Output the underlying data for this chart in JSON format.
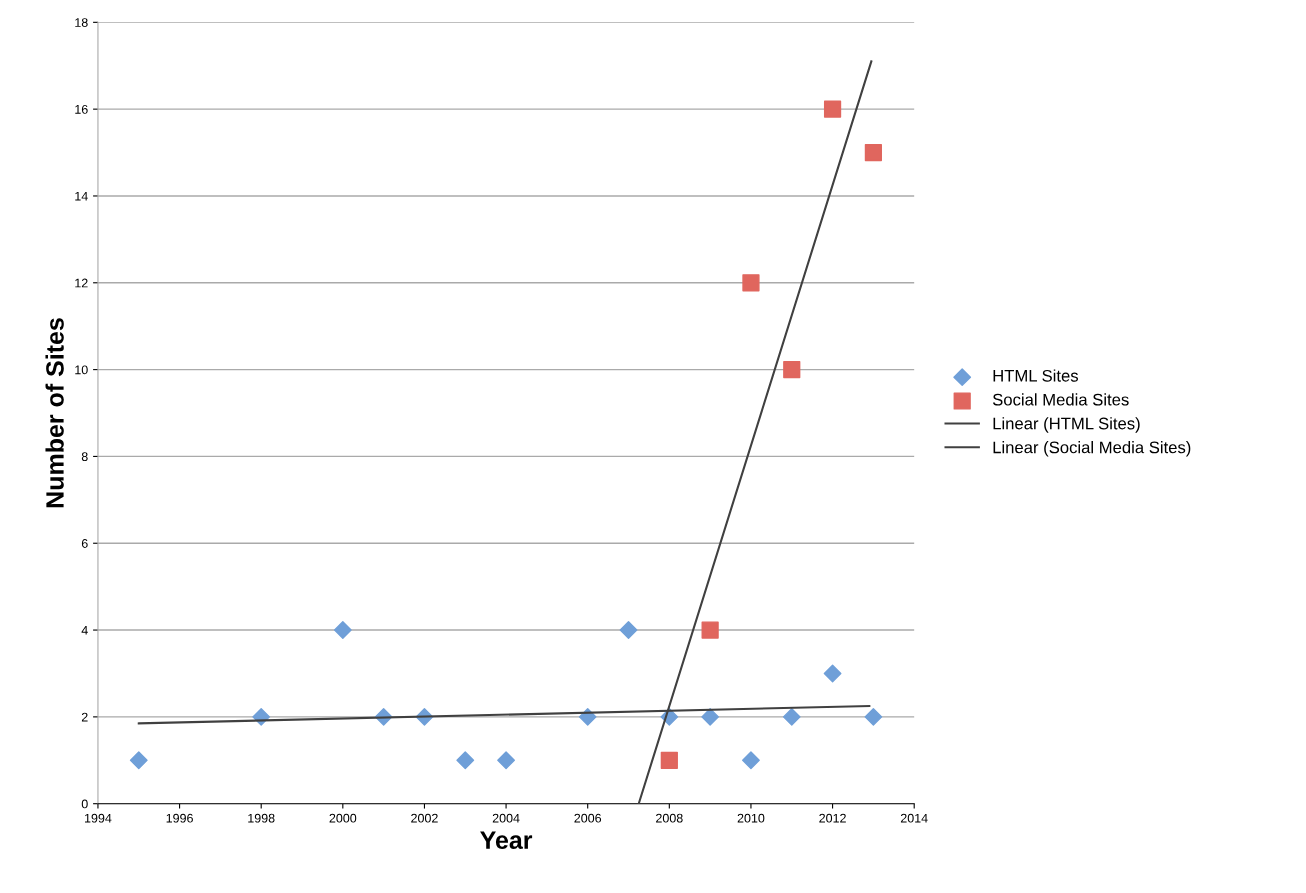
{
  "chart_data": {
    "type": "scatter",
    "xlabel": "Year",
    "ylabel": "Number of Sites",
    "xlim": [
      1994,
      2014
    ],
    "xticks": [
      1994,
      1996,
      1998,
      2000,
      2002,
      2004,
      2006,
      2008,
      2010,
      2012,
      2014
    ],
    "ylim": [
      0,
      18
    ],
    "yticks": [
      0,
      2,
      4,
      6,
      8,
      10,
      12,
      14,
      16,
      18
    ],
    "grid": "y",
    "legend": "right",
    "series": [
      {
        "name": "HTML Sites",
        "marker": "diamond",
        "color": "#6f9fd8",
        "x": [
          1995,
          1998,
          2000,
          2001,
          2002,
          2003,
          2004,
          2006,
          2007,
          2008,
          2009,
          2010,
          2011,
          2012,
          2013
        ],
        "values": [
          1,
          2,
          4,
          2,
          2,
          1,
          1,
          2,
          4,
          2,
          2,
          1,
          2,
          3,
          2
        ]
      },
      {
        "name": "Social Media Sites",
        "marker": "square",
        "color": "#e0665e",
        "x": [
          2008,
          2009,
          2010,
          2011,
          2012,
          2013
        ],
        "values": [
          1,
          4,
          12,
          10,
          16,
          15
        ]
      },
      {
        "name": "Linear (HTML Sites)",
        "type": "line",
        "line_style": "solid",
        "color": "#404040",
        "x": [
          1995,
          2012.9
        ],
        "values": [
          1.85,
          2.25
        ]
      },
      {
        "name": "Linear (Social Media Sites)",
        "type": "line",
        "line_style": "solid",
        "color": "#404040",
        "x": [
          2007.25,
          2012.95
        ],
        "values": [
          0,
          17.1
        ]
      }
    ]
  }
}
